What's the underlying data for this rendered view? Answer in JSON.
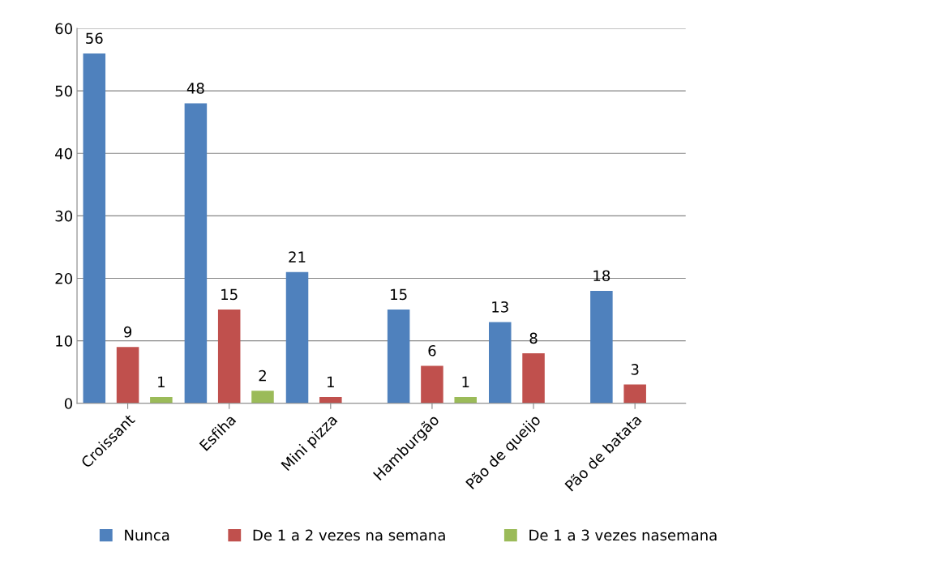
{
  "chart_data": {
    "type": "bar",
    "categories": [
      "Croissant",
      "Esfiha",
      "Mini pizza",
      "Hamburgão",
      "Pão de queijo",
      "Pão de batata"
    ],
    "series": [
      {
        "name": "Nunca",
        "color": "#4f81bd",
        "values": [
          56,
          48,
          21,
          15,
          13,
          18
        ]
      },
      {
        "name": "De 1 a 2 vezes na semana",
        "color": "#c0504d",
        "values": [
          9,
          15,
          1,
          6,
          8,
          3
        ]
      },
      {
        "name": "De 1 a 3 vezes nasemana",
        "color": "#9bbb59",
        "values": [
          1,
          2,
          null,
          1,
          null,
          null
        ]
      }
    ],
    "ylim": [
      0,
      60
    ],
    "yticks": [
      0,
      10,
      20,
      30,
      40,
      50,
      60
    ],
    "grid": "y",
    "legend": "bottom",
    "data_labels": true
  }
}
